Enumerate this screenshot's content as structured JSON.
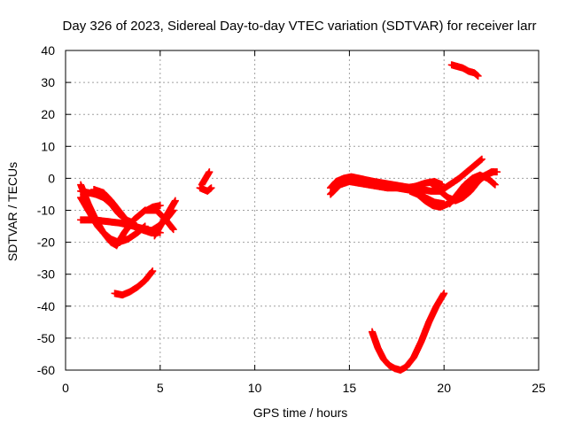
{
  "chart_data": {
    "type": "scatter",
    "title": "Day 326 of 2023, Sidereal Day-to-day VTEC variation (SDTVAR) for receiver larr",
    "xlabel": "GPS time / hours",
    "ylabel": "SDTVAR / TECUs",
    "xlim": [
      0,
      25
    ],
    "ylim": [
      -60,
      40
    ],
    "xticks": [
      0,
      5,
      10,
      15,
      20,
      25
    ],
    "yticks": [
      -60,
      -50,
      -40,
      -30,
      -20,
      -10,
      0,
      10,
      20,
      30,
      40
    ],
    "xtick_labels": [
      "0",
      "5",
      "10",
      "15",
      "20",
      "25"
    ],
    "ytick_labels": [
      "-60",
      "-50",
      "-40",
      "-30",
      "-20",
      "-10",
      "0",
      "10",
      "20",
      "30",
      "40"
    ],
    "grid": true,
    "marker": "plus",
    "color": "#ff0000",
    "series": [
      {
        "x": [
          0.8,
          1.2,
          1.6,
          2.0,
          2.4,
          2.7
        ],
        "y": [
          -2,
          -8,
          -13,
          -17,
          -20,
          -21
        ]
      },
      {
        "x": [
          2.7,
          3.1,
          3.6,
          4.2,
          4.8,
          5.3,
          5.7
        ],
        "y": [
          -21,
          -17,
          -13,
          -10,
          -10,
          -13,
          -16
        ]
      },
      {
        "x": [
          0.8,
          1.2,
          1.6,
          2.0,
          2.4,
          2.8,
          3.2,
          3.6,
          4.0,
          4.5
        ],
        "y": [
          -4,
          -4.5,
          -5,
          -6,
          -8,
          -11,
          -13,
          -15,
          -16,
          -17
        ]
      },
      {
        "x": [
          1.5,
          2.0,
          2.4,
          2.8,
          3.2,
          3.6
        ],
        "y": [
          -3.5,
          -4.5,
          -7,
          -10,
          -13,
          -14
        ]
      },
      {
        "x": [
          0.8,
          1.5,
          2.2,
          2.9,
          3.6,
          4.3,
          5.0
        ],
        "y": [
          -13,
          -13,
          -13.5,
          -14,
          -15,
          -16,
          -17
        ]
      },
      {
        "x": [
          0.8,
          1.1,
          1.4,
          1.7,
          2.0,
          2.4,
          2.8,
          3.3,
          3.8,
          4.2
        ],
        "y": [
          -6,
          -9,
          -12,
          -15,
          -17,
          -19,
          -20,
          -19,
          -17,
          -15
        ]
      },
      {
        "x": [
          3.7,
          4.1,
          4.5,
          4.9,
          5.3,
          5.7
        ],
        "y": [
          -15,
          -16,
          -16.5,
          -15,
          -13,
          -10
        ]
      },
      {
        "x": [
          4.7,
          5.0,
          5.3,
          5.6,
          5.8
        ],
        "y": [
          -18,
          -15,
          -12,
          -9,
          -7
        ]
      },
      {
        "x": [
          4.3,
          4.6,
          5.0
        ],
        "y": [
          -10,
          -9,
          -8.5
        ]
      },
      {
        "x": [
          2.6,
          3.0,
          3.4,
          3.8,
          4.2,
          4.6
        ],
        "y": [
          -36,
          -36.5,
          -35.5,
          -34,
          -32,
          -29
        ]
      },
      {
        "x": [
          7.1,
          7.3,
          7.5,
          7.7
        ],
        "y": [
          -3,
          -3.5,
          -4,
          -3
        ]
      },
      {
        "x": [
          7.2,
          7.4,
          7.6
        ],
        "y": [
          -2,
          0,
          2
        ]
      },
      {
        "x": [
          14.0,
          14.3,
          14.7,
          15.1,
          15.5,
          15.9,
          16.3,
          16.8,
          17.3,
          17.8,
          18.3,
          18.8,
          19.3,
          19.8,
          20.3,
          20.8,
          21.3,
          21.7,
          22.0
        ],
        "y": [
          -3,
          -1,
          0,
          0.5,
          0,
          -0.5,
          -1,
          -1.5,
          -2,
          -2.5,
          -3,
          -3.5,
          -4,
          -4,
          -2,
          0,
          2.5,
          4.5,
          6
        ]
      },
      {
        "x": [
          14.0,
          14.5,
          15.0,
          15.5,
          16.0,
          16.5,
          17.0,
          17.5,
          18.0,
          18.5,
          19.0,
          19.5,
          20.0
        ],
        "y": [
          -5,
          -2,
          -1,
          -1.5,
          -2,
          -2.5,
          -3,
          -3,
          -3.5,
          -4,
          -6,
          -7.5,
          -8
        ]
      },
      {
        "x": [
          18.2,
          18.6,
          19.0,
          19.4,
          19.8,
          20.2,
          20.6,
          21.0,
          21.4,
          21.8,
          22.2,
          22.5,
          22.8
        ],
        "y": [
          -4,
          -5,
          -7,
          -8.5,
          -9,
          -8,
          -6,
          -4,
          -2,
          0,
          1,
          2,
          2
        ]
      },
      {
        "x": [
          19.4,
          19.8,
          20.2,
          20.6,
          21.0,
          21.4,
          21.8,
          22.2,
          22.6
        ],
        "y": [
          -2,
          -4,
          -6,
          -7,
          -6,
          -4,
          -1,
          1,
          2
        ]
      },
      {
        "x": [
          20.3,
          20.7,
          21.1,
          21.5,
          21.9,
          22.3,
          22.7
        ],
        "y": [
          -8,
          -5,
          -2,
          0,
          1,
          0,
          -2
        ]
      },
      {
        "x": [
          18.0,
          18.5,
          19.0,
          19.5,
          19.9
        ],
        "y": [
          -3,
          -2.5,
          -1.5,
          -1,
          -2
        ]
      },
      {
        "x": [
          20.4,
          20.7,
          21.0,
          21.3,
          21.6,
          21.8
        ],
        "y": [
          35.5,
          35,
          34.5,
          33.5,
          33,
          32
        ]
      },
      {
        "x": [
          16.2,
          16.5,
          16.8,
          17.1,
          17.4,
          17.7,
          18.0,
          18.4,
          18.8,
          19.2,
          19.6,
          20.0
        ],
        "y": [
          -48,
          -53,
          -56.5,
          -58.5,
          -59.5,
          -60,
          -59,
          -56,
          -51,
          -45,
          -40,
          -36
        ]
      }
    ]
  }
}
